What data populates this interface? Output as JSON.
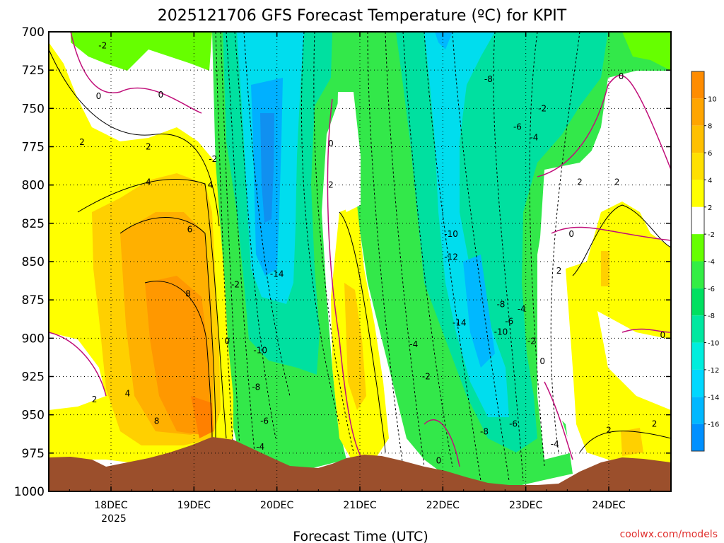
{
  "chart_data": {
    "type": "contour",
    "title": "2025121706 GFS Forecast Temperature (ºC) for KPIT",
    "xlabel": "Forecast Time (UTC)",
    "ylabel": "",
    "y_axis": {
      "ticks": [
        700,
        725,
        750,
        775,
        800,
        825,
        850,
        875,
        900,
        925,
        950,
        975,
        1000
      ],
      "labels": [
        "700",
        "725",
        "750",
        "775",
        "800",
        "825",
        "850",
        "875",
        "900",
        "925",
        "950",
        "975",
        "1000"
      ],
      "inverted": true,
      "range": [
        700,
        1000
      ]
    },
    "x_axis": {
      "ticks": [
        0.75,
        1.75,
        2.75,
        3.75,
        4.75,
        5.75,
        6.75
      ],
      "labels": [
        "18DEC",
        "19DEC",
        "20DEC",
        "21DEC",
        "22DEC",
        "23DEC",
        "24DEC"
      ],
      "year_label": "2025",
      "range_days_from_start": [
        0,
        7.5
      ]
    },
    "grid": true,
    "colorbar": {
      "labels": [
        "10",
        "8",
        "6",
        "4",
        "2",
        "-2",
        "-4",
        "-6",
        "-8",
        "-10",
        "-12",
        "-14",
        "-16"
      ],
      "colors": [
        "#ff8c00",
        "#ffa500",
        "#ffc000",
        "#ffe000",
        "#ffff00",
        "#ffffff",
        "#66ff00",
        "#33ee44",
        "#00e060",
        "#00e8a0",
        "#00eedd",
        "#00d8ff",
        "#00b8ff",
        "#0090ff"
      ]
    },
    "contour_labels": [
      {
        "t": 0.6,
        "p": 742,
        "v": "0"
      },
      {
        "t": 1.35,
        "p": 741,
        "v": "0"
      },
      {
        "t": 0.65,
        "p": 709,
        "v": "-2"
      },
      {
        "t": 0.4,
        "p": 772,
        "v": "2"
      },
      {
        "t": 1.2,
        "p": 775,
        "v": "2"
      },
      {
        "t": 1.2,
        "p": 798,
        "v": "4"
      },
      {
        "t": 1.95,
        "p": 800,
        "v": "4"
      },
      {
        "t": 1.98,
        "p": 783,
        "v": "-2"
      },
      {
        "t": 1.7,
        "p": 829,
        "v": "6"
      },
      {
        "t": 1.68,
        "p": 871,
        "v": "8"
      },
      {
        "t": 1.3,
        "p": 954,
        "v": "8"
      },
      {
        "t": 0.95,
        "p": 936,
        "v": "4"
      },
      {
        "t": 0.55,
        "p": 940,
        "v": "2"
      },
      {
        "t": 2.25,
        "p": 865,
        "v": "-2"
      },
      {
        "t": 2.15,
        "p": 902,
        "v": "0"
      },
      {
        "t": 2.55,
        "p": 908,
        "v": "-10"
      },
      {
        "t": 2.5,
        "p": 932,
        "v": "-8"
      },
      {
        "t": 2.6,
        "p": 954,
        "v": "-6"
      },
      {
        "t": 2.55,
        "p": 971,
        "v": "-4"
      },
      {
        "t": 2.75,
        "p": 858,
        "v": "-14"
      },
      {
        "t": 3.4,
        "p": 773,
        "v": "0"
      },
      {
        "t": 3.4,
        "p": 800,
        "v": "2"
      },
      {
        "t": 4.4,
        "p": 904,
        "v": "-4"
      },
      {
        "t": 4.55,
        "p": 925,
        "v": "-2"
      },
      {
        "t": 4.7,
        "p": 980,
        "v": "0"
      },
      {
        "t": 5.3,
        "p": 731,
        "v": "-8"
      },
      {
        "t": 5.65,
        "p": 762,
        "v": "-6"
      },
      {
        "t": 5.95,
        "p": 750,
        "v": "-2"
      },
      {
        "t": 5.85,
        "p": 769,
        "v": "-4"
      },
      {
        "t": 4.85,
        "p": 832,
        "v": "-10"
      },
      {
        "t": 4.85,
        "p": 847,
        "v": "-12"
      },
      {
        "t": 4.95,
        "p": 890,
        "v": "-14"
      },
      {
        "t": 5.45,
        "p": 878,
        "v": "-8"
      },
      {
        "t": 5.7,
        "p": 881,
        "v": "-4"
      },
      {
        "t": 5.55,
        "p": 889,
        "v": "-6"
      },
      {
        "t": 5.45,
        "p": 896,
        "v": "-10"
      },
      {
        "t": 5.82,
        "p": 902,
        "v": "-2"
      },
      {
        "t": 5.95,
        "p": 915,
        "v": "0"
      },
      {
        "t": 5.6,
        "p": 956,
        "v": "-6"
      },
      {
        "t": 5.25,
        "p": 961,
        "v": "-8"
      },
      {
        "t": 6.1,
        "p": 969,
        "v": "-4"
      },
      {
        "t": 6.4,
        "p": 798,
        "v": "2"
      },
      {
        "t": 6.3,
        "p": 832,
        "v": "0"
      },
      {
        "t": 6.15,
        "p": 856,
        "v": "2"
      },
      {
        "t": 6.85,
        "p": 798,
        "v": "2"
      },
      {
        "t": 6.9,
        "p": 729,
        "v": "0"
      },
      {
        "t": 7.4,
        "p": 898,
        "v": "0"
      },
      {
        "t": 6.75,
        "p": 960,
        "v": "2"
      },
      {
        "t": 7.3,
        "p": 956,
        "v": "2"
      }
    ]
  },
  "credit": "coolwx.com/models"
}
